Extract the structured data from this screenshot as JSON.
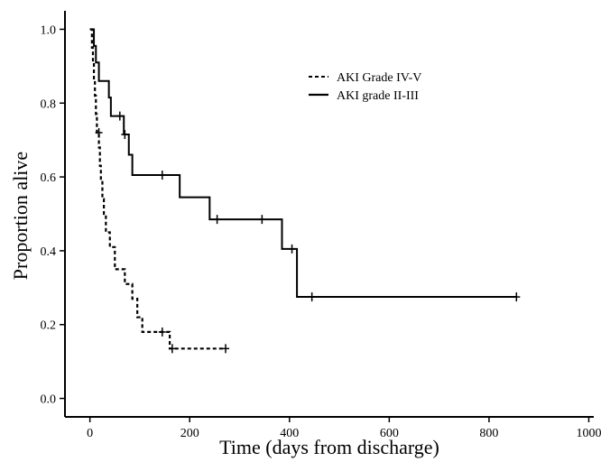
{
  "chart_data": {
    "type": "line",
    "subtype": "kaplan-meier step curves",
    "xlabel": "Time (days from discharge)",
    "ylabel": "Proportion alive",
    "xlim": [
      -50,
      1010
    ],
    "ylim": [
      -0.05,
      1.05
    ],
    "x_ticks": [
      0,
      200,
      400,
      600,
      800,
      1000
    ],
    "y_ticks": [
      0.0,
      0.2,
      0.4,
      0.6,
      0.8,
      1.0
    ],
    "x_tick_labels": [
      "0",
      "200",
      "400",
      "600",
      "800",
      "1000"
    ],
    "y_tick_labels": [
      "0.0",
      "0.2",
      "0.4",
      "0.6",
      "0.8",
      "1.0"
    ],
    "grid": false,
    "legend_position": "top-right",
    "series": [
      {
        "name": "AKI Grade IV-V",
        "line_style": "dashed",
        "color": "#000000",
        "steps": [
          [
            0,
            1.0
          ],
          [
            4,
            0.95
          ],
          [
            6,
            0.91
          ],
          [
            8,
            0.86
          ],
          [
            10,
            0.82
          ],
          [
            12,
            0.77
          ],
          [
            14,
            0.72
          ],
          [
            18,
            0.68
          ],
          [
            20,
            0.63
          ],
          [
            22,
            0.59
          ],
          [
            25,
            0.54
          ],
          [
            28,
            0.5
          ],
          [
            32,
            0.45
          ],
          [
            40,
            0.41
          ],
          [
            50,
            0.35
          ],
          [
            70,
            0.31
          ],
          [
            85,
            0.27
          ],
          [
            95,
            0.22
          ],
          [
            105,
            0.18
          ],
          [
            140,
            0.18
          ],
          [
            160,
            0.135
          ],
          [
            272,
            0.135
          ]
        ],
        "censored": [
          [
            18,
            0.72
          ],
          [
            145,
            0.18
          ],
          [
            165,
            0.135
          ],
          [
            272,
            0.135
          ]
        ]
      },
      {
        "name": "AKI grade II-III",
        "line_style": "solid",
        "color": "#000000",
        "steps": [
          [
            0,
            1.0
          ],
          [
            8,
            0.955
          ],
          [
            12,
            0.91
          ],
          [
            18,
            0.86
          ],
          [
            38,
            0.815
          ],
          [
            42,
            0.765
          ],
          [
            68,
            0.715
          ],
          [
            78,
            0.66
          ],
          [
            85,
            0.605
          ],
          [
            180,
            0.545
          ],
          [
            240,
            0.485
          ],
          [
            385,
            0.405
          ],
          [
            415,
            0.275
          ],
          [
            855,
            0.275
          ]
        ],
        "censored": [
          [
            60,
            0.765
          ],
          [
            70,
            0.715
          ],
          [
            145,
            0.605
          ],
          [
            255,
            0.485
          ],
          [
            345,
            0.485
          ],
          [
            405,
            0.405
          ],
          [
            445,
            0.275
          ],
          [
            855,
            0.275
          ]
        ]
      }
    ]
  }
}
